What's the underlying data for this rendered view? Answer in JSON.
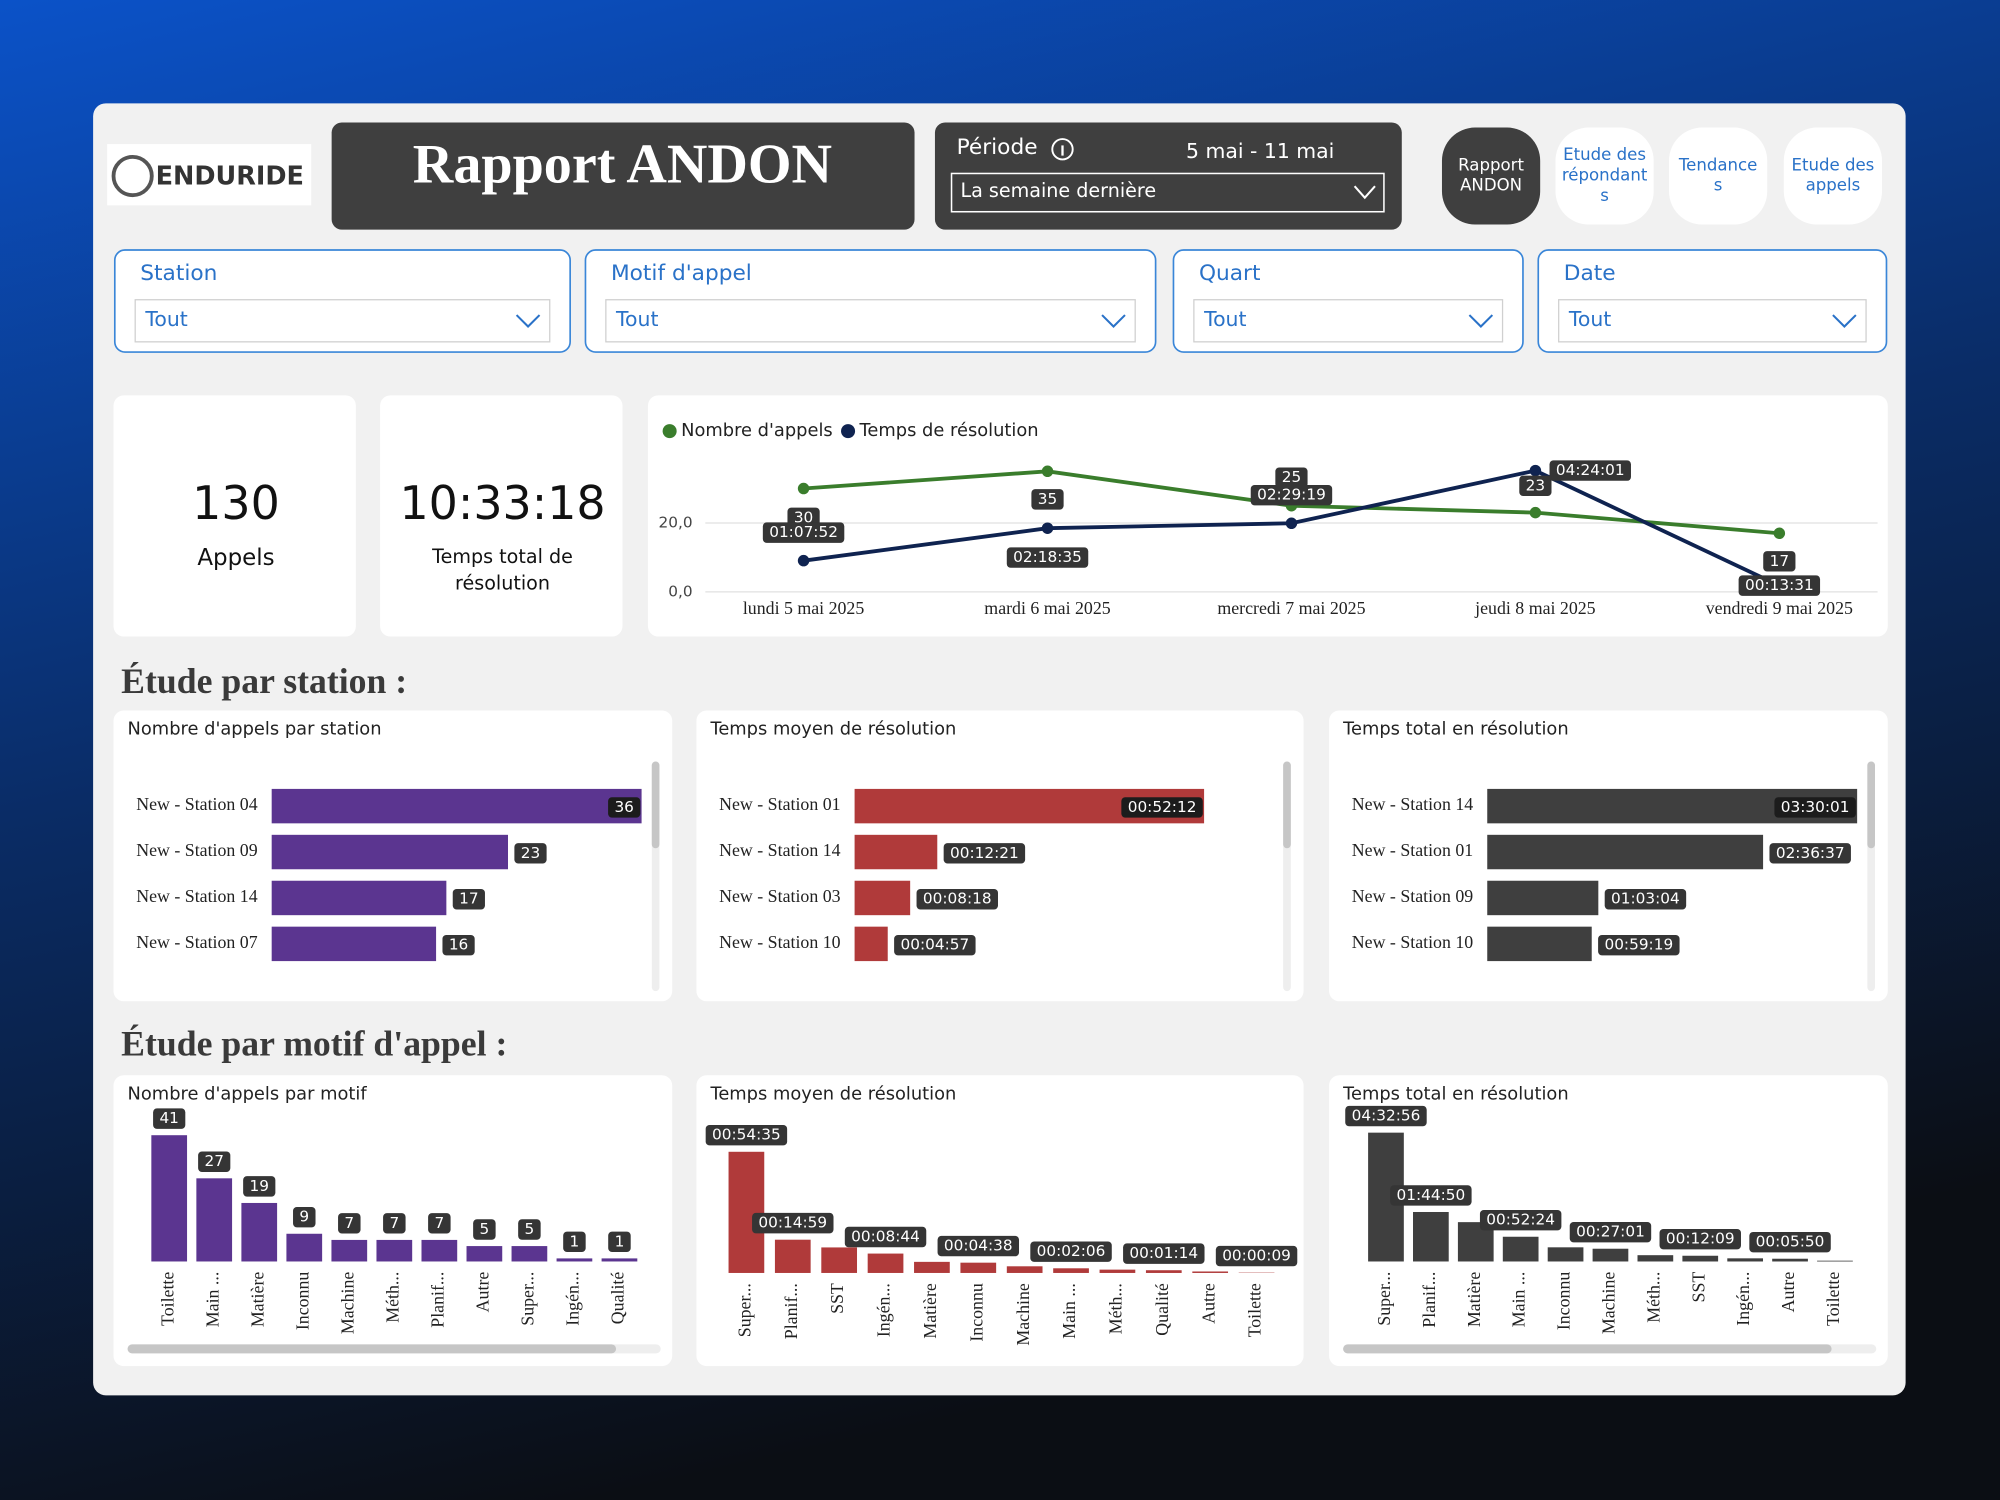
{
  "header": {
    "logo": "ENDURIDE",
    "title": "Rapport ANDON",
    "period": {
      "label": "Période",
      "range": "5 mai - 11 mai",
      "selection": "La semaine dernière"
    },
    "nav": [
      [
        "Rapport",
        "ANDON"
      ],
      [
        "Etude des",
        "répondant",
        "s"
      ],
      [
        "Tendance",
        "s"
      ],
      [
        "Etude des",
        "appels"
      ]
    ]
  },
  "filters": [
    {
      "label": "Station",
      "value": "Tout"
    },
    {
      "label": "Motif d'appel",
      "value": "Tout"
    },
    {
      "label": "Quart",
      "value": "Tout"
    },
    {
      "label": "Date",
      "value": "Tout"
    }
  ],
  "kpis": [
    {
      "value": "130",
      "label": [
        "Appels"
      ]
    },
    {
      "value": "10:33:18",
      "label": [
        "Temps total de",
        "résolution"
      ]
    }
  ],
  "sections": [
    "Étude par station :",
    "Étude par motif d'appel :"
  ],
  "chart_data": [
    {
      "type": "line",
      "categories": [
        "lundi 5 mai 2025",
        "mardi 6 mai 2025",
        "mercredi 7 mai 2025",
        "jeudi 8 mai 2025",
        "vendredi 9 mai 2025"
      ],
      "series": [
        {
          "name": "Nombre d'appels",
          "color": "#3a7d2c",
          "values": [
            30,
            35,
            25,
            23,
            17
          ]
        },
        {
          "name": "Temps de résolution",
          "color": "#0f2350",
          "axis": "y2",
          "values": [
            4072,
            8315,
            8959,
            15841,
            811
          ],
          "value_labels": [
            "01:07:52",
            "02:18:35",
            "02:29:19",
            "04:24:01",
            "00:13:31"
          ]
        }
      ],
      "ylim": [
        0,
        40
      ],
      "yticks": [
        {
          "value": 0,
          "label": "0,0"
        },
        {
          "value": 20,
          "label": "20,0"
        }
      ],
      "y2lim": [
        0,
        18000
      ],
      "grid": true,
      "legend": "top-left"
    },
    {
      "type": "hbar",
      "title": "Nombre d'appels par station",
      "categories": [
        "New - Station 04",
        "New - Station 09",
        "New - Station 14",
        "New - Station 07"
      ],
      "values": [
        36,
        23,
        17,
        16
      ],
      "color": "#5b3590"
    },
    {
      "type": "hbar",
      "title": "Temps moyen de résolution",
      "categories": [
        "New - Station 01",
        "New - Station 14",
        "New - Station 03",
        "New - Station 10"
      ],
      "values": [
        3132,
        741,
        498,
        297
      ],
      "value_labels": [
        "00:52:12",
        "00:12:21",
        "00:08:18",
        "00:04:57"
      ],
      "color": "#b03a3a"
    },
    {
      "type": "hbar",
      "title": "Temps total en résolution",
      "categories": [
        "New - Station 14",
        "New - Station 01",
        "New - Station 09",
        "New - Station 10"
      ],
      "values": [
        12601,
        9397,
        3784,
        3559
      ],
      "value_labels": [
        "03:30:01",
        "02:36:37",
        "01:03:04",
        "00:59:19"
      ],
      "color": "#3f3f3f"
    },
    {
      "type": "bar",
      "title": "Nombre d'appels par motif",
      "categories": [
        "Toilette",
        "Main ...",
        "Matière",
        "Inconnu",
        "Machine",
        "Méth...",
        "Planif...",
        "Autre",
        "Super...",
        "Ingén...",
        "Qualité"
      ],
      "values": [
        41,
        27,
        19,
        9,
        7,
        7,
        7,
        5,
        5,
        1,
        1
      ],
      "color": "#5b3590"
    },
    {
      "type": "bar",
      "title": "Temps moyen de résolution",
      "categories": [
        "Super...",
        "Planif...",
        "SST",
        "Ingén...",
        "Matière",
        "Inconnu",
        "Machine",
        "Main ...",
        "Méth...",
        "Qualité",
        "Autre",
        "Toilette"
      ],
      "values": [
        3275,
        899,
        690,
        524,
        300,
        278,
        180,
        126,
        90,
        74,
        40,
        9
      ],
      "value_labels": [
        "00:54:35",
        "00:14:59",
        null,
        "00:08:44",
        null,
        "00:04:38",
        null,
        "00:02:06",
        null,
        "00:01:14",
        null,
        "00:00:09"
      ],
      "color": "#b03a3a"
    },
    {
      "type": "bar",
      "title": "Temps total en résolution",
      "categories": [
        "Super...",
        "Planif...",
        "Matière",
        "Main ...",
        "Inconnu",
        "Machine",
        "Méth...",
        "SST",
        "Ingén...",
        "Autre",
        "Toilette"
      ],
      "values": [
        16376,
        6290,
        5000,
        3144,
        1800,
        1621,
        800,
        729,
        400,
        350,
        100
      ],
      "value_labels": [
        "04:32:56",
        "01:44:50",
        null,
        "00:52:24",
        null,
        "00:27:01",
        null,
        "00:12:09",
        null,
        "00:05:50",
        null
      ],
      "color": "#3f3f3f"
    }
  ]
}
